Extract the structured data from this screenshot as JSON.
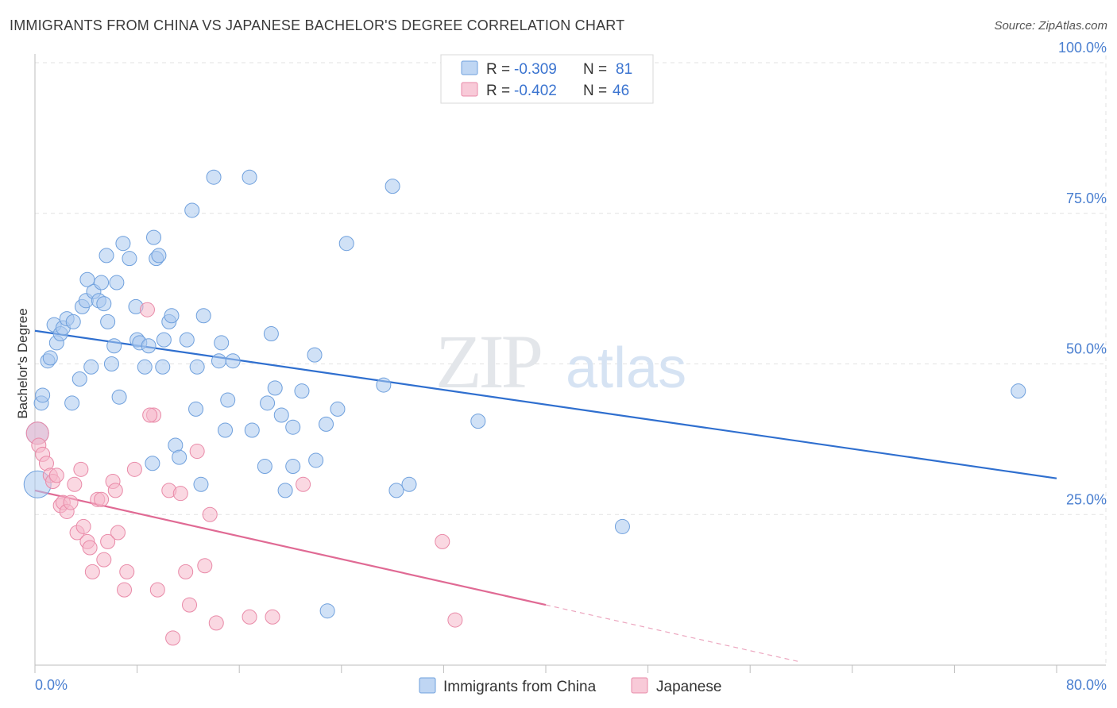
{
  "header": {
    "title": "IMMIGRANTS FROM CHINA VS JAPANESE BACHELOR'S DEGREE CORRELATION CHART",
    "source": "Source: ZipAtlas.com"
  },
  "watermark": {
    "zip": "ZIP",
    "atlas": "atlas"
  },
  "legend_top": [
    {
      "r_label": "R = ",
      "r_value": "-0.309",
      "n_label": "N = ",
      "n_value": "81",
      "color": "#a9c8ef"
    },
    {
      "r_label": "R = ",
      "r_value": "-0.402",
      "n_label": "N = ",
      "n_value": "46",
      "color": "#f5b8cb"
    }
  ],
  "legend_bottom": [
    {
      "label": "Immigrants from China",
      "color": "#a9c8ef"
    },
    {
      "label": "Japanese",
      "color": "#f5b8cb"
    }
  ],
  "colors": {
    "blue_fill": "#a9c8ef",
    "blue_stroke": "#6fa0dd",
    "blue_line": "#2f6fcf",
    "pink_fill": "#f5b8cb",
    "pink_stroke": "#e98aa8",
    "pink_line": "#e06a94",
    "grid": "#e2e2e2",
    "tick_label": "#4a7fd0"
  },
  "chart_data": {
    "type": "scatter",
    "title": "IMMIGRANTS FROM CHINA VS JAPANESE BACHELOR'S DEGREE CORRELATION CHART",
    "xlabel": "",
    "ylabel": "Bachelor's Degree",
    "xlim": [
      0,
      80
    ],
    "ylim": [
      0,
      100
    ],
    "x_tick_labels": [
      "0.0%",
      "80.0%"
    ],
    "y_ticks": [
      25,
      50,
      75,
      100
    ],
    "y_tick_labels": [
      "25.0%",
      "50.0%",
      "75.0%",
      "100.0%"
    ],
    "grid": true,
    "legend_placement": "top-center",
    "series": [
      {
        "name": "Immigrants from China",
        "r": -0.309,
        "n": 81,
        "trend": {
          "x0": 0,
          "y0": 55.5,
          "x1": 80,
          "y1": 31.0
        },
        "points": [
          [
            0.2,
            38.5,
            1
          ],
          [
            0.2,
            30,
            2
          ],
          [
            0.5,
            43.5,
            0
          ],
          [
            0.6,
            44.8,
            0
          ],
          [
            1.0,
            50.5,
            0
          ],
          [
            1.2,
            51.0,
            0
          ],
          [
            1.5,
            56.5,
            0
          ],
          [
            1.7,
            53.5,
            0
          ],
          [
            2.0,
            55.0,
            0
          ],
          [
            2.2,
            56.0,
            0
          ],
          [
            2.5,
            57.5,
            0
          ],
          [
            3.0,
            57.0,
            0
          ],
          [
            2.9,
            43.5,
            0
          ],
          [
            3.5,
            47.5,
            0
          ],
          [
            3.7,
            59.5,
            0
          ],
          [
            4.0,
            60.5,
            0
          ],
          [
            4.1,
            64.0,
            0
          ],
          [
            4.4,
            49.5,
            0
          ],
          [
            4.6,
            62.0,
            0
          ],
          [
            5.0,
            60.5,
            0
          ],
          [
            5.2,
            63.5,
            0
          ],
          [
            5.4,
            60.0,
            0
          ],
          [
            5.6,
            68.0,
            0
          ],
          [
            5.7,
            57.0,
            0
          ],
          [
            6.0,
            50.0,
            0
          ],
          [
            6.2,
            53.0,
            0
          ],
          [
            6.4,
            63.5,
            0
          ],
          [
            6.6,
            44.5,
            0
          ],
          [
            6.9,
            70.0,
            0
          ],
          [
            7.4,
            67.5,
            0
          ],
          [
            7.9,
            59.5,
            0
          ],
          [
            8.0,
            54.0,
            0
          ],
          [
            8.2,
            53.5,
            0
          ],
          [
            8.6,
            49.5,
            0
          ],
          [
            8.9,
            53.0,
            0
          ],
          [
            9.2,
            33.5,
            0
          ],
          [
            9.3,
            71.0,
            0
          ],
          [
            9.5,
            67.5,
            0
          ],
          [
            9.7,
            68.0,
            0
          ],
          [
            10.0,
            49.5,
            0
          ],
          [
            10.1,
            54.0,
            0
          ],
          [
            10.5,
            57.0,
            0
          ],
          [
            10.7,
            58.0,
            0
          ],
          [
            11.0,
            36.5,
            0
          ],
          [
            11.3,
            34.5,
            0
          ],
          [
            11.9,
            54.0,
            0
          ],
          [
            12.3,
            75.5,
            0
          ],
          [
            12.6,
            42.5,
            0
          ],
          [
            12.7,
            49.5,
            0
          ],
          [
            13.0,
            30.0,
            0
          ],
          [
            13.2,
            58.0,
            0
          ],
          [
            14.0,
            81.0,
            0
          ],
          [
            14.4,
            50.5,
            0
          ],
          [
            14.6,
            53.5,
            0
          ],
          [
            14.9,
            39.0,
            0
          ],
          [
            15.1,
            44.0,
            0
          ],
          [
            15.5,
            50.5,
            0
          ],
          [
            16.8,
            81.0,
            0
          ],
          [
            17.0,
            39.0,
            0
          ],
          [
            18.0,
            33.0,
            0
          ],
          [
            18.2,
            43.5,
            0
          ],
          [
            18.5,
            55.0,
            0
          ],
          [
            18.8,
            46.0,
            0
          ],
          [
            19.3,
            41.5,
            0
          ],
          [
            19.6,
            29.0,
            0
          ],
          [
            20.2,
            33.0,
            0
          ],
          [
            20.2,
            39.5,
            0
          ],
          [
            20.9,
            45.5,
            0
          ],
          [
            21.9,
            51.5,
            0
          ],
          [
            22.0,
            34.0,
            0
          ],
          [
            22.8,
            40.0,
            0
          ],
          [
            22.9,
            9.0,
            0
          ],
          [
            23.7,
            42.5,
            0
          ],
          [
            24.4,
            70.0,
            0
          ],
          [
            27.3,
            46.5,
            0
          ],
          [
            28.0,
            79.5,
            0
          ],
          [
            28.3,
            29.0,
            0
          ],
          [
            29.3,
            30.0,
            0
          ],
          [
            34.7,
            40.5,
            0
          ],
          [
            46.0,
            23.0,
            0
          ],
          [
            77.0,
            45.5,
            0
          ]
        ]
      },
      {
        "name": "Japanese",
        "r": -0.402,
        "n": 46,
        "trend": {
          "x0": 0,
          "y0": 29.0,
          "x1": 40,
          "y1": 10.0,
          "dash_to_x": 60,
          "dash_to_y": 0.5
        },
        "points": [
          [
            0.2,
            38.5,
            1
          ],
          [
            0.3,
            36.5,
            0
          ],
          [
            0.6,
            35.0,
            0
          ],
          [
            0.9,
            33.5,
            0
          ],
          [
            1.2,
            31.5,
            0
          ],
          [
            1.4,
            30.5,
            0
          ],
          [
            1.7,
            31.5,
            0
          ],
          [
            2.0,
            26.5,
            0
          ],
          [
            2.2,
            27.0,
            0
          ],
          [
            2.5,
            25.5,
            0
          ],
          [
            2.8,
            27.0,
            0
          ],
          [
            3.1,
            30.0,
            0
          ],
          [
            3.3,
            22.0,
            0
          ],
          [
            3.6,
            32.5,
            0
          ],
          [
            3.8,
            23.0,
            0
          ],
          [
            4.1,
            20.5,
            0
          ],
          [
            4.3,
            19.5,
            0
          ],
          [
            4.5,
            15.5,
            0
          ],
          [
            4.9,
            27.5,
            0
          ],
          [
            5.2,
            27.5,
            0
          ],
          [
            5.4,
            17.5,
            0
          ],
          [
            5.7,
            20.5,
            0
          ],
          [
            6.1,
            30.5,
            0
          ],
          [
            6.3,
            29.0,
            0
          ],
          [
            6.5,
            22.0,
            0
          ],
          [
            7.0,
            12.5,
            0
          ],
          [
            7.2,
            15.5,
            0
          ],
          [
            7.8,
            32.5,
            0
          ],
          [
            8.8,
            59.0,
            0
          ],
          [
            9.3,
            41.5,
            0
          ],
          [
            9.6,
            12.5,
            0
          ],
          [
            10.5,
            29.0,
            0
          ],
          [
            10.8,
            4.5,
            0
          ],
          [
            11.4,
            28.5,
            0
          ],
          [
            11.8,
            15.5,
            0
          ],
          [
            12.1,
            10.0,
            0
          ],
          [
            12.7,
            35.5,
            0
          ],
          [
            13.3,
            16.5,
            0
          ],
          [
            13.7,
            25.0,
            0
          ],
          [
            14.2,
            7.0,
            0
          ],
          [
            16.8,
            8.0,
            0
          ],
          [
            18.6,
            8.0,
            0
          ],
          [
            21.0,
            30.0,
            0
          ],
          [
            31.9,
            20.5,
            0
          ],
          [
            32.9,
            7.5,
            0
          ],
          [
            9.0,
            41.5,
            0
          ]
        ]
      }
    ]
  }
}
